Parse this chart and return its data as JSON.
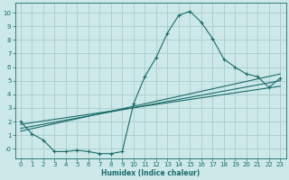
{
  "title": "",
  "xlabel": "Humidex (Indice chaleur)",
  "background_color": "#cce8e8",
  "grid_color": "#aacccc",
  "line_color": "#1a6b6b",
  "xlim": [
    -0.5,
    23.5
  ],
  "ylim": [
    -0.7,
    10.7
  ],
  "xticks": [
    0,
    1,
    2,
    3,
    4,
    5,
    6,
    7,
    8,
    9,
    10,
    11,
    12,
    13,
    14,
    15,
    16,
    17,
    18,
    19,
    20,
    21,
    22,
    23
  ],
  "yticks": [
    0,
    1,
    2,
    3,
    4,
    5,
    6,
    7,
    8,
    9,
    10
  ],
  "ytick_labels": [
    "-0",
    "1",
    "2",
    "3",
    "4",
    "5",
    "6",
    "7",
    "8",
    "9",
    "10"
  ],
  "curve_x": [
    0,
    1,
    2,
    3,
    4,
    5,
    6,
    7,
    8,
    9,
    10,
    11,
    12,
    13,
    14,
    15,
    16,
    17,
    18,
    19,
    20,
    21,
    22,
    23
  ],
  "curve_y": [
    2.0,
    1.1,
    0.65,
    -0.2,
    -0.2,
    -0.1,
    -0.2,
    -0.35,
    -0.35,
    -0.2,
    3.3,
    5.3,
    6.7,
    8.5,
    9.8,
    10.1,
    9.3,
    8.1,
    6.6,
    6.0,
    5.5,
    5.3,
    4.5,
    5.2
  ],
  "line1_x": [
    0,
    23
  ],
  "line1_y": [
    1.3,
    5.5
  ],
  "line2_x": [
    0,
    23
  ],
  "line2_y": [
    1.5,
    5.0
  ],
  "line3_x": [
    0,
    23
  ],
  "line3_y": [
    1.8,
    4.6
  ]
}
